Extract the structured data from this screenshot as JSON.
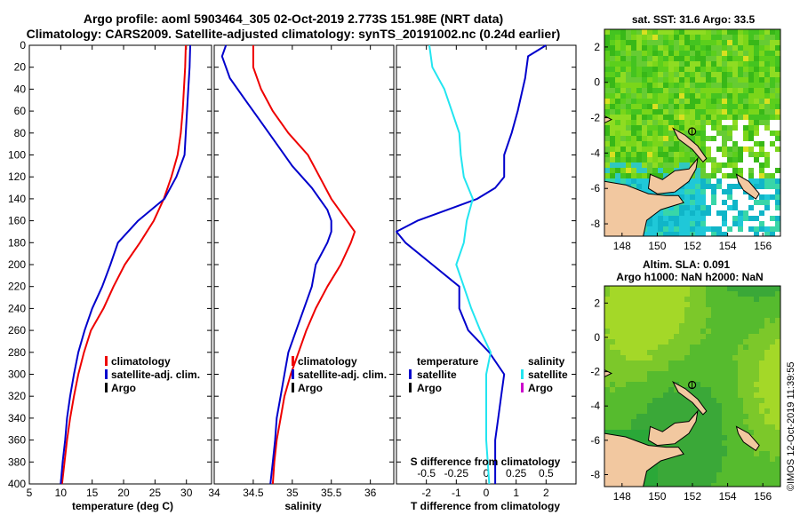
{
  "header": {
    "line1": "Argo profile: aoml 5903464_305 02-Oct-2019 2.773S 151.98E (NRT data)",
    "line2": "Climatology: CARS2009. Satellite-adjusted climatology: synTS_20191002.nc (0.24d earlier)"
  },
  "credit": "©IMOS 12-Oct-2019 11:39:55",
  "colors": {
    "climatology": "#ee0000",
    "satellite": "#0000cc",
    "argo": "#000000",
    "sal_satellite": "#22e5f0",
    "sal_argo": "#cc00cc"
  },
  "chart_data": [
    {
      "type": "line",
      "id": "temperature",
      "xlabel": "temperature (deg C)",
      "ylabel": "",
      "xlim": [
        5,
        34
      ],
      "ylim": [
        400,
        0
      ],
      "xticks": [
        "5",
        "10",
        "15",
        "20",
        "25",
        "30"
      ],
      "xtick_values": [
        5,
        10,
        15,
        20,
        25,
        30
      ],
      "yticks": [
        "0",
        "20",
        "40",
        "60",
        "80",
        "100",
        "120",
        "140",
        "160",
        "180",
        "200",
        "220",
        "240",
        "260",
        "280",
        "300",
        "320",
        "340",
        "360",
        "380",
        "400"
      ],
      "ytick_values": [
        0,
        20,
        40,
        60,
        80,
        100,
        120,
        140,
        160,
        180,
        200,
        220,
        240,
        260,
        280,
        300,
        320,
        340,
        360,
        380,
        400
      ],
      "legend": [
        "climatology",
        "satellite-adj. clim.",
        "Argo"
      ],
      "legend_position": "lower-right",
      "series": [
        {
          "name": "climatology",
          "color": "#ee0000",
          "points": [
            [
              29.9,
              0
            ],
            [
              29.8,
              20
            ],
            [
              29.6,
              40
            ],
            [
              29.4,
              60
            ],
            [
              29.1,
              80
            ],
            [
              28.6,
              100
            ],
            [
              27.6,
              120
            ],
            [
              26.4,
              140
            ],
            [
              24.8,
              160
            ],
            [
              22.6,
              180
            ],
            [
              20.2,
              200
            ],
            [
              18.4,
              220
            ],
            [
              16.8,
              240
            ],
            [
              14.8,
              260
            ],
            [
              13.7,
              280
            ],
            [
              12.8,
              300
            ],
            [
              12.1,
              320
            ],
            [
              11.5,
              340
            ],
            [
              11.0,
              360
            ],
            [
              10.6,
              380
            ],
            [
              10.2,
              400
            ]
          ]
        },
        {
          "name": "satellite-adj. clim.",
          "color": "#0000cc",
          "points": [
            [
              30.6,
              0
            ],
            [
              30.5,
              20
            ],
            [
              30.3,
              40
            ],
            [
              30.1,
              60
            ],
            [
              29.9,
              80
            ],
            [
              29.7,
              100
            ],
            [
              28.4,
              120
            ],
            [
              26.5,
              140
            ],
            [
              22.3,
              160
            ],
            [
              19.1,
              180
            ],
            [
              17.9,
              200
            ],
            [
              16.6,
              220
            ],
            [
              15.0,
              240
            ],
            [
              13.8,
              260
            ],
            [
              12.8,
              280
            ],
            [
              12.1,
              300
            ],
            [
              11.5,
              320
            ],
            [
              11.0,
              340
            ],
            [
              10.7,
              360
            ],
            [
              10.3,
              380
            ],
            [
              10.0,
              400
            ]
          ]
        }
      ]
    },
    {
      "type": "line",
      "id": "salinity",
      "xlabel": "salinity",
      "xlim": [
        34,
        36.3
      ],
      "ylim": [
        400,
        0
      ],
      "xticks": [
        "34",
        "34.5",
        "35",
        "35.5",
        "36"
      ],
      "xtick_values": [
        34,
        34.5,
        35,
        35.5,
        36
      ],
      "legend": [
        "climatology",
        "satellite-adj. clim.",
        "Argo"
      ],
      "legend_position": "lower-right",
      "series": [
        {
          "name": "climatology",
          "color": "#ee0000",
          "points": [
            [
              34.5,
              0
            ],
            [
              34.5,
              20
            ],
            [
              34.6,
              40
            ],
            [
              34.75,
              60
            ],
            [
              34.95,
              80
            ],
            [
              35.2,
              100
            ],
            [
              35.35,
              120
            ],
            [
              35.5,
              140
            ],
            [
              35.7,
              160
            ],
            [
              35.8,
              170
            ],
            [
              35.75,
              180
            ],
            [
              35.62,
              200
            ],
            [
              35.45,
              220
            ],
            [
              35.3,
              240
            ],
            [
              35.18,
              260
            ],
            [
              35.08,
              280
            ],
            [
              34.98,
              300
            ],
            [
              34.9,
              320
            ],
            [
              34.85,
              340
            ],
            [
              34.8,
              360
            ],
            [
              34.77,
              380
            ],
            [
              34.75,
              400
            ]
          ]
        },
        {
          "name": "satellite-adj. clim.",
          "color": "#0000cc",
          "points": [
            [
              34.15,
              0
            ],
            [
              34.1,
              10
            ],
            [
              34.2,
              30
            ],
            [
              34.4,
              50
            ],
            [
              34.6,
              70
            ],
            [
              34.8,
              90
            ],
            [
              35.0,
              110
            ],
            [
              35.25,
              130
            ],
            [
              35.45,
              150
            ],
            [
              35.5,
              160
            ],
            [
              35.5,
              170
            ],
            [
              35.45,
              180
            ],
            [
              35.3,
              200
            ],
            [
              35.25,
              220
            ],
            [
              35.15,
              240
            ],
            [
              35.05,
              260
            ],
            [
              34.95,
              280
            ],
            [
              34.9,
              300
            ],
            [
              34.85,
              320
            ],
            [
              34.8,
              340
            ],
            [
              34.78,
              360
            ],
            [
              34.75,
              380
            ],
            [
              34.72,
              400
            ]
          ]
        }
      ]
    },
    {
      "type": "line",
      "id": "difference",
      "xlabel": "T difference from climatology",
      "secondary_xlabel": "S difference from climatology",
      "xlim": [
        -3,
        3
      ],
      "ylim": [
        400,
        0
      ],
      "xticks": [
        "-2",
        "-1",
        "0",
        "1",
        "2"
      ],
      "xtick_values": [
        -2,
        -1,
        0,
        1,
        2
      ],
      "secondary_xticks": [
        "-0.5",
        "-0.25",
        "0",
        "0.25",
        "0.5"
      ],
      "secondary_xtick_values": [
        -2,
        -1,
        0,
        1,
        2
      ],
      "legend_left_title": "temperature",
      "legend_left": [
        "satellite",
        "Argo"
      ],
      "legend_right_title": "salinity",
      "legend_right": [
        "satellite",
        "Argo"
      ],
      "series": [
        {
          "name": "T satellite",
          "color": "#0000cc",
          "points": [
            [
              2.0,
              0
            ],
            [
              1.4,
              10
            ],
            [
              1.3,
              30
            ],
            [
              1.05,
              60
            ],
            [
              0.85,
              80
            ],
            [
              0.6,
              100
            ],
            [
              0.6,
              120
            ],
            [
              0.3,
              130
            ],
            [
              -0.3,
              140
            ],
            [
              -1.3,
              150
            ],
            [
              -2.3,
              160
            ],
            [
              -3.0,
              170
            ],
            [
              -2.7,
              180
            ],
            [
              -1.8,
              200
            ],
            [
              -0.9,
              220
            ],
            [
              -0.9,
              240
            ],
            [
              -0.6,
              260
            ],
            [
              0.1,
              280
            ],
            [
              0.6,
              300
            ],
            [
              0.5,
              320
            ],
            [
              0.4,
              340
            ],
            [
              0.3,
              360
            ],
            [
              0.3,
              380
            ],
            [
              0.3,
              400
            ]
          ]
        },
        {
          "name": "S satellite",
          "color": "#22e5f0",
          "points": [
            [
              -1.9,
              0
            ],
            [
              -1.8,
              20
            ],
            [
              -1.4,
              40
            ],
            [
              -1.15,
              60
            ],
            [
              -0.9,
              80
            ],
            [
              -0.85,
              100
            ],
            [
              -0.75,
              120
            ],
            [
              -0.45,
              140
            ],
            [
              -0.65,
              160
            ],
            [
              -0.75,
              180
            ],
            [
              -1.0,
              200
            ],
            [
              -0.75,
              220
            ],
            [
              -0.5,
              240
            ],
            [
              -0.2,
              260
            ],
            [
              0.15,
              280
            ],
            [
              0.0,
              300
            ],
            [
              0.0,
              320
            ],
            [
              0.0,
              340
            ],
            [
              0.0,
              360
            ],
            [
              0.05,
              380
            ],
            [
              0.1,
              400
            ]
          ]
        }
      ]
    },
    {
      "type": "heatmap",
      "id": "sst_map",
      "title": "sat. SST: 31.6 Argo: 33.5",
      "xlim": [
        147,
        157
      ],
      "ylim": [
        -8.7,
        3
      ],
      "xticks": [
        "148",
        "150",
        "152",
        "154",
        "156"
      ],
      "xtick_values": [
        148,
        150,
        152,
        154,
        156
      ],
      "yticks": [
        "2",
        "0",
        "-2",
        "-4",
        "-6",
        "-8"
      ],
      "ytick_values": [
        2,
        0,
        -2,
        -4,
        -6,
        -8
      ],
      "argo_position": [
        151.98,
        -2.773
      ]
    },
    {
      "type": "heatmap",
      "id": "sla_map",
      "title": "Altim. SLA: 0.091",
      "subtitle": "Argo h1000: NaN h2000: NaN",
      "xlim": [
        147,
        157
      ],
      "ylim": [
        -8.7,
        3
      ],
      "xticks": [
        "148",
        "150",
        "152",
        "154",
        "156"
      ],
      "xtick_values": [
        148,
        150,
        152,
        154,
        156
      ],
      "yticks": [
        "2",
        "0",
        "-2",
        "-4",
        "-6",
        "-8"
      ],
      "ytick_values": [
        2,
        0,
        -2,
        -4,
        -6,
        -8
      ],
      "argo_position": [
        151.98,
        -2.773
      ]
    }
  ]
}
